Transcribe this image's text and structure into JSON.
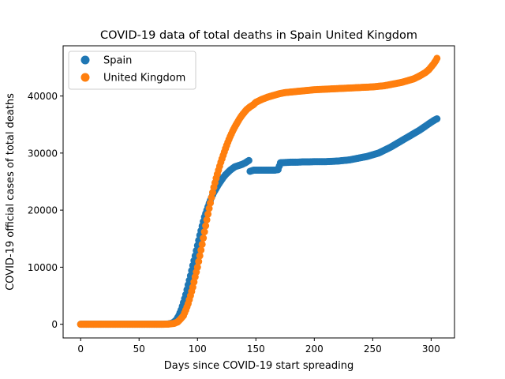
{
  "chart_data": {
    "type": "scatter",
    "title": "COVID-19 data of total deaths in Spain United Kingdom",
    "xlabel": "Days since COVID-19 start spreading",
    "ylabel": "COVID-19 official cases of total deaths",
    "xlim": [
      -15,
      320
    ],
    "ylim": [
      -2400,
      48800
    ],
    "xticks": [
      0,
      50,
      100,
      150,
      200,
      250,
      300
    ],
    "yticks": [
      0,
      10000,
      20000,
      30000,
      40000
    ],
    "grid": false,
    "legend_position": "upper left",
    "series": [
      {
        "name": "Spain",
        "color": "#1f77b4",
        "points": [
          [
            0,
            0
          ],
          [
            10,
            0
          ],
          [
            20,
            0
          ],
          [
            30,
            0
          ],
          [
            40,
            0
          ],
          [
            50,
            0
          ],
          [
            60,
            0
          ],
          [
            70,
            0
          ],
          [
            75,
            50
          ],
          [
            78,
            180
          ],
          [
            80,
            400
          ],
          [
            82,
            800
          ],
          [
            84,
            1500
          ],
          [
            86,
            2500
          ],
          [
            88,
            3800
          ],
          [
            90,
            5200
          ],
          [
            92,
            6900
          ],
          [
            94,
            8500
          ],
          [
            96,
            10300
          ],
          [
            98,
            12000
          ],
          [
            100,
            13800
          ],
          [
            102,
            15600
          ],
          [
            104,
            17200
          ],
          [
            106,
            18800
          ],
          [
            108,
            20000
          ],
          [
            110,
            21200
          ],
          [
            112,
            22200
          ],
          [
            114,
            23100
          ],
          [
            116,
            23800
          ],
          [
            118,
            24500
          ],
          [
            120,
            25100
          ],
          [
            122,
            25700
          ],
          [
            124,
            26200
          ],
          [
            126,
            26600
          ],
          [
            128,
            27000
          ],
          [
            130,
            27300
          ],
          [
            132,
            27600
          ],
          [
            135,
            27800
          ],
          [
            138,
            28000
          ],
          [
            141,
            28300
          ],
          [
            144,
            28700
          ],
          [
            145,
            26800
          ],
          [
            148,
            27000
          ],
          [
            151,
            27000
          ],
          [
            154,
            27000
          ],
          [
            157,
            27000
          ],
          [
            160,
            27000
          ],
          [
            163,
            27000
          ],
          [
            166,
            27000
          ],
          [
            169,
            27100
          ],
          [
            171,
            28300
          ],
          [
            175,
            28350
          ],
          [
            180,
            28400
          ],
          [
            185,
            28400
          ],
          [
            190,
            28450
          ],
          [
            195,
            28450
          ],
          [
            200,
            28500
          ],
          [
            205,
            28500
          ],
          [
            210,
            28500
          ],
          [
            215,
            28550
          ],
          [
            220,
            28600
          ],
          [
            225,
            28700
          ],
          [
            230,
            28800
          ],
          [
            235,
            29000
          ],
          [
            240,
            29200
          ],
          [
            245,
            29400
          ],
          [
            250,
            29700
          ],
          [
            255,
            30000
          ],
          [
            260,
            30500
          ],
          [
            265,
            31000
          ],
          [
            270,
            31600
          ],
          [
            275,
            32200
          ],
          [
            280,
            32800
          ],
          [
            285,
            33400
          ],
          [
            290,
            34000
          ],
          [
            295,
            34700
          ],
          [
            300,
            35400
          ],
          [
            303,
            35800
          ],
          [
            305,
            36000
          ]
        ]
      },
      {
        "name": "United Kingdom",
        "color": "#ff7f0e",
        "points": [
          [
            0,
            0
          ],
          [
            10,
            0
          ],
          [
            20,
            0
          ],
          [
            30,
            0
          ],
          [
            40,
            0
          ],
          [
            50,
            0
          ],
          [
            60,
            0
          ],
          [
            70,
            0
          ],
          [
            75,
            30
          ],
          [
            80,
            150
          ],
          [
            83,
            400
          ],
          [
            85,
            800
          ],
          [
            88,
            1500
          ],
          [
            90,
            2500
          ],
          [
            92,
            3600
          ],
          [
            94,
            5000
          ],
          [
            96,
            6500
          ],
          [
            98,
            8300
          ],
          [
            100,
            10000
          ],
          [
            102,
            12000
          ],
          [
            104,
            14000
          ],
          [
            106,
            16200
          ],
          [
            108,
            18300
          ],
          [
            110,
            20300
          ],
          [
            112,
            22200
          ],
          [
            114,
            24000
          ],
          [
            116,
            25600
          ],
          [
            118,
            27000
          ],
          [
            120,
            28400
          ],
          [
            122,
            29600
          ],
          [
            124,
            30800
          ],
          [
            126,
            31900
          ],
          [
            128,
            32900
          ],
          [
            130,
            33800
          ],
          [
            132,
            34600
          ],
          [
            134,
            35300
          ],
          [
            136,
            36000
          ],
          [
            138,
            36600
          ],
          [
            140,
            37100
          ],
          [
            142,
            37600
          ],
          [
            145,
            38100
          ],
          [
            148,
            38500
          ],
          [
            150,
            38900
          ],
          [
            155,
            39400
          ],
          [
            160,
            39800
          ],
          [
            165,
            40100
          ],
          [
            170,
            40400
          ],
          [
            175,
            40600
          ],
          [
            180,
            40700
          ],
          [
            185,
            40800
          ],
          [
            190,
            40900
          ],
          [
            195,
            41000
          ],
          [
            200,
            41100
          ],
          [
            210,
            41200
          ],
          [
            220,
            41300
          ],
          [
            230,
            41400
          ],
          [
            240,
            41500
          ],
          [
            250,
            41600
          ],
          [
            260,
            41800
          ],
          [
            265,
            42000
          ],
          [
            270,
            42200
          ],
          [
            275,
            42400
          ],
          [
            280,
            42700
          ],
          [
            285,
            43000
          ],
          [
            290,
            43500
          ],
          [
            295,
            44100
          ],
          [
            298,
            44600
          ],
          [
            300,
            45100
          ],
          [
            302,
            45600
          ],
          [
            304,
            46200
          ],
          [
            305,
            46600
          ]
        ]
      }
    ]
  }
}
